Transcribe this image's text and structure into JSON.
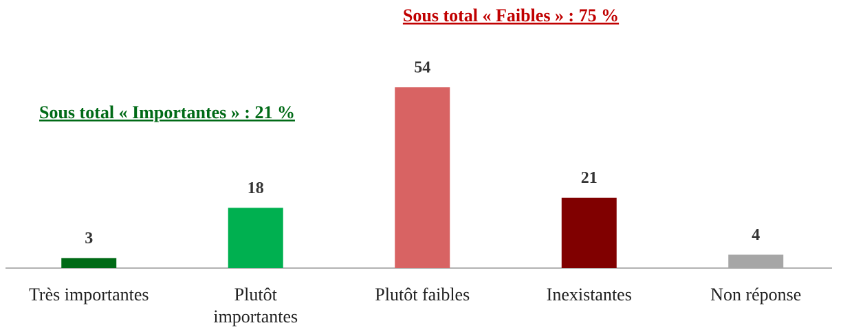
{
  "chart_data": {
    "type": "bar",
    "categories": [
      "Très importantes",
      "Plutôt importantes",
      "Plutôt faibles",
      "Inexistantes",
      "Non réponse"
    ],
    "values": [
      3,
      18,
      54,
      21,
      4
    ],
    "colors": [
      "#006a16",
      "#00b050",
      "#d86363",
      "#800000",
      "#a6a6a6"
    ],
    "annotations": [
      {
        "text": "Sous total « Importantes » : 21 %",
        "color": "#006a16"
      },
      {
        "text": "Sous total « Faibles » : 75 %",
        "color": "#c00000"
      }
    ]
  }
}
